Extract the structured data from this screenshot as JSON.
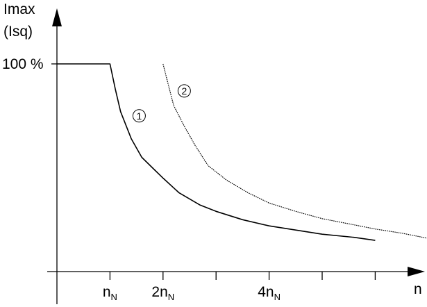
{
  "chart_data": {
    "type": "line",
    "ylabel_lines": [
      "Imax",
      "(Isq)"
    ],
    "xlabel": "n",
    "ytick": {
      "label": "100 %",
      "value": 100
    },
    "xlim": [
      0,
      7
    ],
    "ylim": [
      0,
      110
    ],
    "x_ticks": [
      {
        "main": "n",
        "sub": "N",
        "value": 1
      },
      {
        "main": "2n",
        "sub": "N",
        "value": 2
      },
      {
        "main": "",
        "sub": "",
        "value": 3
      },
      {
        "main": "4n",
        "sub": "N",
        "value": 4
      },
      {
        "main": "",
        "sub": "",
        "value": 5
      },
      {
        "main": "",
        "sub": "",
        "value": 6
      }
    ],
    "series": [
      {
        "name": "1",
        "style": "solid",
        "x": [
          0,
          1.0,
          1.1,
          1.2,
          1.4,
          1.6,
          1.8,
          2.0,
          2.3,
          2.7,
          3.0,
          3.5,
          4.0,
          4.5,
          5.0,
          5.6,
          6.0
        ],
        "y": [
          100,
          100,
          88,
          77,
          64,
          55,
          50,
          45,
          38,
          32,
          29,
          25,
          22,
          20,
          18,
          16.5,
          15
        ]
      },
      {
        "name": "2",
        "style": "dotted",
        "x": [
          2.0,
          2.1,
          2.2,
          2.4,
          2.6,
          2.85,
          3.2,
          3.6,
          4.0,
          4.5,
          5.0,
          5.5,
          6.0,
          6.5,
          7.0
        ],
        "y": [
          100,
          90,
          80,
          70,
          61,
          51,
          44,
          38,
          33,
          29,
          25.5,
          23,
          20.5,
          18.5,
          16
        ]
      }
    ],
    "markers": [
      {
        "label": "1",
        "x": 1.55,
        "y": 75
      },
      {
        "label": "2",
        "x": 2.4,
        "y": 87
      }
    ],
    "grid": false,
    "legend": "none"
  }
}
